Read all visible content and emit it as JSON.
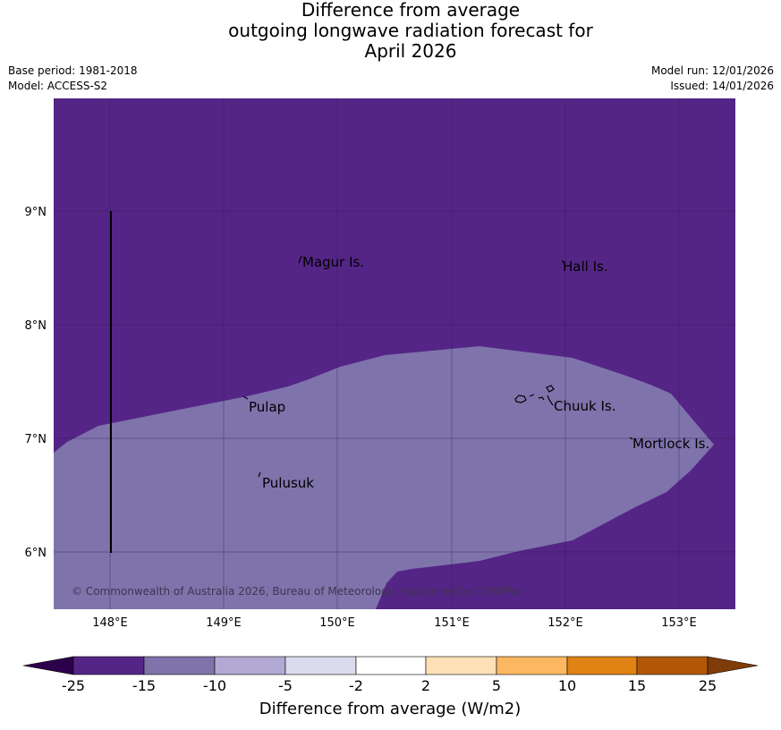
{
  "title": {
    "line1": "Difference from average",
    "line2": "outgoing longwave radiation forecast for",
    "line3": "April 2026"
  },
  "meta": {
    "base_period": "Base period: 1981-2018",
    "model": "Model: ACCESS-S2",
    "model_run": "Model run: 12/01/2026",
    "issued": "Issued: 14/01/2026"
  },
  "map": {
    "lon_labels": [
      "148°E",
      "149°E",
      "150°E",
      "151°E",
      "152°E",
      "153°E"
    ],
    "lat_labels": [
      "9°N",
      "8°N",
      "7°N",
      "6°N"
    ],
    "places": [
      "Magur Is.",
      "Hall Is.",
      "Pulap",
      "Chuuk Is.",
      "Mortlock Is.",
      "Pulusuk"
    ],
    "copyright": "© Commonwealth of Australia 2026, Bureau of Meteorology, supported by COSPPac",
    "fill_colors": {
      "strong_negative": "#542586",
      "moderate_negative": "#7f73ac"
    }
  },
  "colorbar": {
    "title": "Difference from average (W/m2)",
    "ticks": [
      "-25",
      "-15",
      "-10",
      "-5",
      "-2",
      "2",
      "5",
      "10",
      "15",
      "25"
    ],
    "colors": [
      "#542586",
      "#7f73ac",
      "#b1a9d3",
      "#d9dbec",
      "#ffffff",
      "#fee0b6",
      "#fcb760",
      "#e08214",
      "#b35806"
    ],
    "under_color": "#2d004b",
    "over_color": "#7f3b08"
  }
}
